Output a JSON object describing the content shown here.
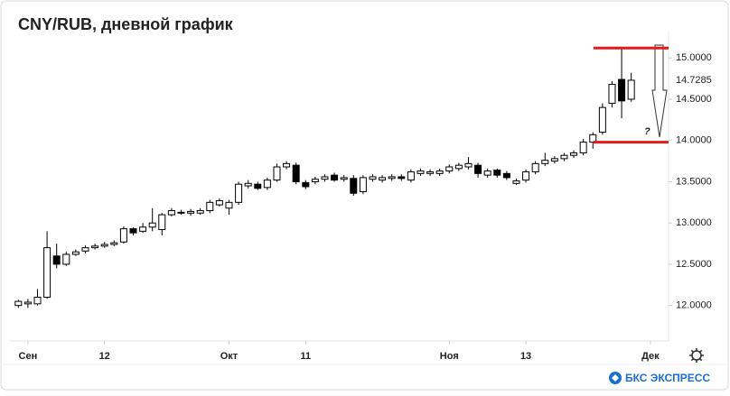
{
  "chart_data": {
    "type": "candlestick",
    "title": "CNY/RUB, дневной график",
    "series": [
      {
        "up_color": "#ffffff",
        "down_color": "#000000",
        "outline": "#000000",
        "open": [
          12.0,
          12.02,
          12.02,
          12.1,
          12.6,
          12.5,
          12.62,
          12.66,
          12.7,
          12.72,
          12.74,
          12.77,
          12.93,
          12.9,
          12.95,
          12.92,
          13.1,
          13.13,
          13.12,
          13.12,
          13.15,
          13.22,
          13.18,
          13.25,
          13.45,
          13.47,
          13.43,
          13.52,
          13.68,
          13.7,
          13.49,
          13.5,
          13.53,
          13.58,
          13.53,
          13.54,
          13.38,
          13.53,
          13.52,
          13.54,
          13.56,
          13.52,
          13.6,
          13.6,
          13.6,
          13.63,
          13.66,
          13.68,
          13.7,
          13.58,
          13.64,
          13.6,
          13.48,
          13.52,
          13.62,
          13.72,
          13.75,
          13.78,
          13.82,
          13.85,
          13.98,
          14.1,
          14.45,
          14.74,
          14.5
        ],
        "high": [
          12.07,
          12.08,
          12.2,
          12.9,
          12.75,
          12.65,
          12.68,
          12.73,
          12.75,
          12.77,
          12.79,
          12.96,
          12.95,
          13.0,
          13.18,
          13.12,
          13.18,
          13.16,
          13.17,
          13.18,
          13.28,
          13.3,
          13.28,
          13.5,
          13.52,
          13.5,
          13.55,
          13.72,
          13.75,
          13.73,
          13.52,
          13.56,
          13.59,
          13.61,
          13.58,
          13.58,
          13.58,
          13.59,
          13.58,
          13.59,
          13.59,
          13.65,
          13.66,
          13.65,
          13.66,
          13.71,
          13.73,
          13.8,
          13.73,
          13.66,
          13.66,
          13.63,
          13.54,
          13.65,
          13.75,
          13.85,
          13.81,
          13.85,
          13.88,
          14.02,
          14.1,
          14.45,
          14.72,
          15.12,
          14.82
        ],
        "low": [
          11.97,
          11.97,
          12.0,
          12.08,
          12.45,
          12.48,
          12.6,
          12.63,
          12.68,
          12.7,
          12.72,
          12.75,
          12.85,
          12.88,
          12.9,
          12.85,
          13.08,
          13.1,
          13.09,
          13.1,
          13.12,
          13.2,
          13.1,
          13.22,
          13.42,
          13.4,
          13.4,
          13.5,
          13.65,
          13.47,
          13.41,
          13.47,
          13.5,
          13.5,
          13.5,
          13.33,
          13.35,
          13.5,
          13.49,
          13.51,
          13.51,
          13.49,
          13.57,
          13.57,
          13.57,
          13.6,
          13.63,
          13.65,
          13.55,
          13.55,
          13.55,
          13.52,
          13.46,
          13.49,
          13.59,
          13.69,
          13.72,
          13.75,
          13.79,
          13.82,
          13.9,
          14.07,
          14.4,
          14.27,
          14.47
        ],
        "close": [
          12.05,
          12.04,
          12.1,
          12.7,
          12.5,
          12.62,
          12.65,
          12.7,
          12.72,
          12.74,
          12.76,
          12.93,
          12.88,
          12.95,
          13.0,
          13.1,
          13.15,
          13.12,
          13.14,
          13.15,
          13.25,
          13.27,
          13.25,
          13.47,
          13.48,
          13.42,
          13.52,
          13.68,
          13.72,
          13.5,
          13.44,
          13.53,
          13.56,
          13.52,
          13.55,
          13.36,
          13.55,
          13.56,
          13.55,
          13.56,
          13.54,
          13.62,
          13.63,
          13.62,
          13.63,
          13.68,
          13.7,
          13.72,
          13.6,
          13.63,
          13.58,
          13.55,
          13.51,
          13.62,
          13.72,
          13.76,
          13.78,
          13.82,
          13.85,
          13.98,
          14.07,
          14.4,
          14.68,
          14.48,
          14.73
        ]
      }
    ],
    "xlim": [
      -0.5,
      67.9
    ],
    "xticks": [
      {
        "value": 1,
        "label": "Сен"
      },
      {
        "value": 9,
        "label": "12"
      },
      {
        "value": 22,
        "label": "Окт"
      },
      {
        "value": 30,
        "label": "11"
      },
      {
        "value": 45,
        "label": "Ноя"
      },
      {
        "value": 53,
        "label": "13"
      },
      {
        "value": 66,
        "label": "Дек"
      }
    ],
    "ylim": [
      11.57,
      15.32
    ],
    "yticks": [
      {
        "value": 12,
        "label": "12.0000"
      },
      {
        "value": 12.5,
        "label": "12.5000"
      },
      {
        "value": 13,
        "label": "13.0000"
      },
      {
        "value": 13.5,
        "label": "13.5000"
      },
      {
        "value": 14,
        "label": "14.0000"
      },
      {
        "value": 14.5,
        "label": "14.5000"
      },
      {
        "value": 15,
        "label": "15.0000"
      }
    ],
    "last_price": 14.7285,
    "hlines": [
      {
        "value": 15.12,
        "color": "#e3191b"
      },
      {
        "value": 13.98,
        "color": "#e3191b"
      }
    ],
    "annotations": [
      "?"
    ],
    "brand": "БКС ЭКСПРЕСС"
  }
}
